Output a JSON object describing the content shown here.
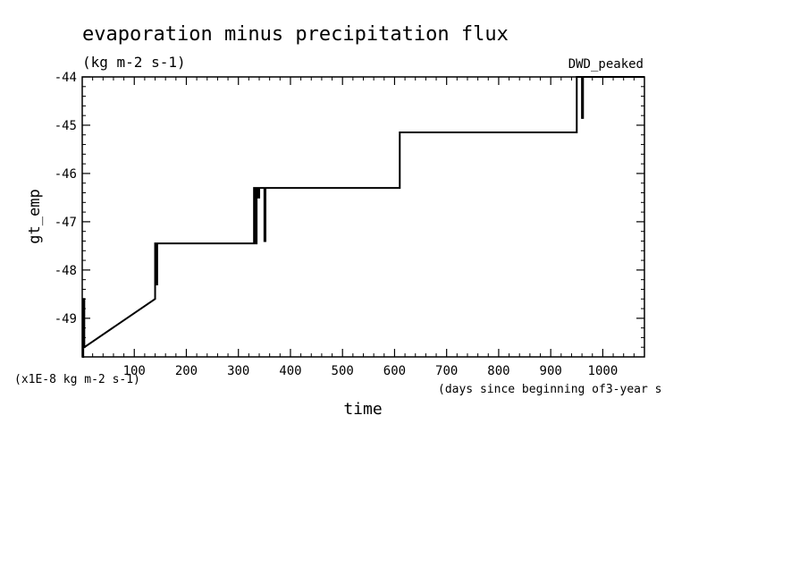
{
  "chart_data": {
    "type": "line",
    "title": "evaporation minus precipitation flux",
    "subtitle": "(kg m-2 s-1)",
    "annotation_right": "DWD_peaked",
    "xlabel": "time",
    "x_units": "(days since beginning of3-year s",
    "ylabel": "gt_emp",
    "y_units": "(x1E-8 kg m-2 s-1)",
    "xlim": [
      0,
      1080
    ],
    "ylim": [
      -49.8,
      -44
    ],
    "grid": false,
    "legend": "none",
    "x_ticks": [
      100,
      200,
      300,
      400,
      500,
      600,
      700,
      800,
      900,
      1000
    ],
    "x_tick_labels": [
      "100",
      "200",
      "300",
      "400",
      "500",
      "600",
      "700",
      "800",
      "900",
      "1000"
    ],
    "y_ticks": [
      -49,
      -48,
      -47,
      -46,
      -45,
      -44
    ],
    "y_tick_labels": [
      "-49",
      "-48",
      "-47",
      "-46",
      "-45",
      "-44"
    ],
    "series": [
      {
        "x": [
          0,
          2,
          2,
          4,
          4,
          140,
          140,
          142,
          142,
          144,
          144,
          330,
          330,
          332,
          332,
          335,
          335,
          337,
          337,
          340,
          340,
          350,
          350,
          352,
          352,
          355,
          355,
          610,
          610,
          950,
          950,
          960,
          960,
          962,
          962,
          1080
        ],
        "y": [
          -49.8,
          -49.8,
          -48.6,
          -48.6,
          -49.6,
          -48.6,
          -47.45,
          -47.45,
          -48.3,
          -48.3,
          -47.45,
          -47.45,
          -46.3,
          -46.3,
          -47.45,
          -47.45,
          -46.3,
          -46.3,
          -46.5,
          -46.5,
          -46.3,
          -46.3,
          -47.4,
          -47.4,
          -46.3,
          -46.3,
          -46.3,
          -46.3,
          -45.15,
          -45.15,
          -44,
          -44,
          -44.85,
          -44.85,
          -44,
          -44
        ]
      }
    ]
  }
}
